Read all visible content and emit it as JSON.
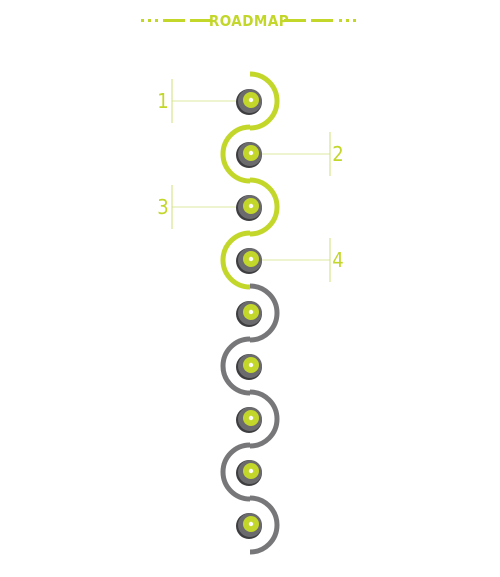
{
  "heading": {
    "title": "ROADMAP"
  },
  "colors": {
    "accent": "#c3d62a",
    "inactive_arc": "#5f5f63",
    "node_outer": "#6b6b6e",
    "node_dark": "#3e3e41",
    "node_center": "#ffffff",
    "leader_line": "#cfe07a"
  },
  "steps": [
    {
      "label": "1",
      "side": "left",
      "status": "active"
    },
    {
      "label": "2",
      "side": "right",
      "status": "active"
    },
    {
      "label": "3",
      "side": "left",
      "status": "active"
    },
    {
      "label": "4",
      "side": "right",
      "status": "active"
    },
    {
      "label": "",
      "side": "",
      "status": "inactive"
    },
    {
      "label": "",
      "side": "",
      "status": "inactive"
    },
    {
      "label": "",
      "side": "",
      "status": "inactive"
    },
    {
      "label": "",
      "side": "",
      "status": "inactive"
    },
    {
      "label": "",
      "side": "",
      "status": "inactive"
    }
  ]
}
